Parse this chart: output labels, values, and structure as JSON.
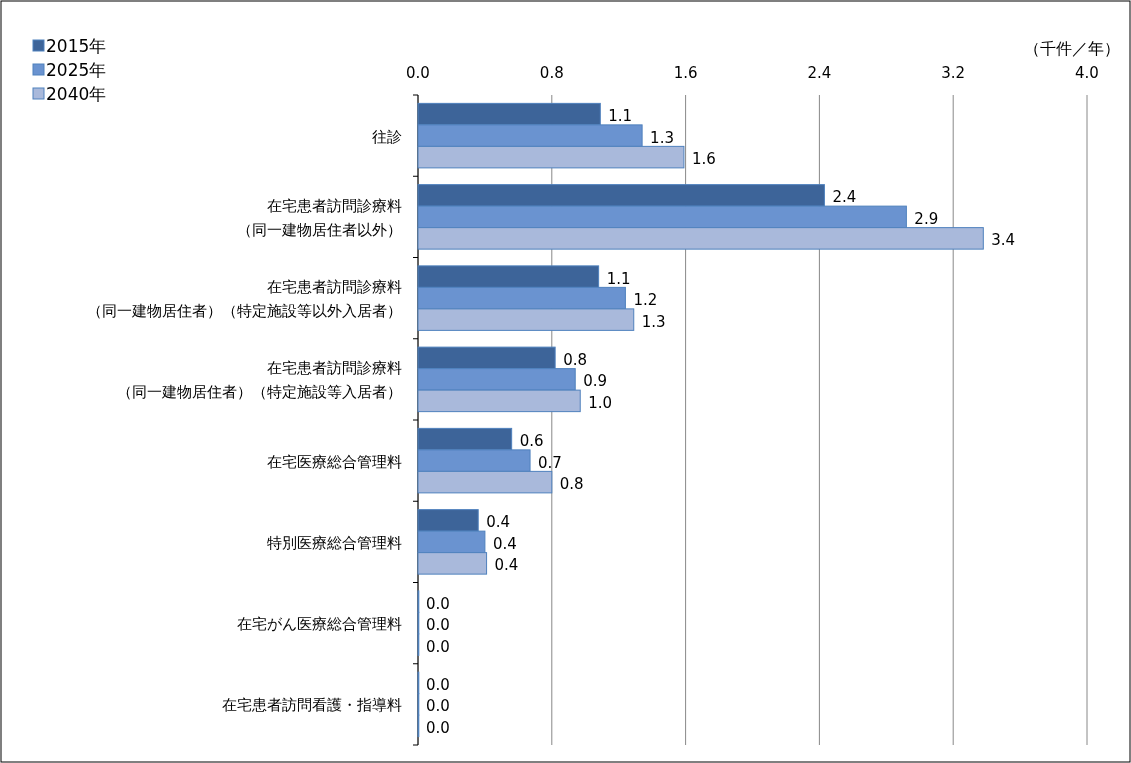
{
  "chart_data": {
    "type": "bar",
    "orientation": "horizontal",
    "categories": [
      "往診",
      "在宅患者訪問診療料（同一建物居住者以外）",
      "在宅患者訪問診療料（同一建物居住者）（特定施設等以外入居者）",
      "在宅患者訪問診療料（同一建物居住者）（特定施設等入居者）",
      "在宅医療総合管理料",
      "特別医療総合管理料",
      "在宅がん医療総合管理料",
      "在宅患者訪問看護・指導料"
    ],
    "series": [
      {
        "name": "2015年",
        "color": "#3d6499",
        "values": [
          1.09,
          2.43,
          1.08,
          0.82,
          0.56,
          0.36,
          0,
          0
        ],
        "value_labels": [
          "1.1",
          "2.4",
          "1.1",
          "0.8",
          "0.6",
          "0.4",
          "0.0",
          "0.0"
        ]
      },
      {
        "name": "2025年",
        "color": "#6a93d0",
        "values": [
          1.34,
          2.92,
          1.24,
          0.94,
          0.67,
          0.4,
          0,
          0
        ],
        "value_labels": [
          "1.3",
          "2.9",
          "1.2",
          "0.9",
          "0.7",
          "0.4",
          "0.0",
          "0.0"
        ]
      },
      {
        "name": "2040年",
        "color": "#a9b9db",
        "values": [
          1.59,
          3.38,
          1.29,
          0.97,
          0.8,
          0.41,
          0,
          0
        ],
        "value_labels": [
          "1.6",
          "3.4",
          "1.3",
          "1.0",
          "0.8",
          "0.4",
          "0.0",
          "0.0"
        ]
      }
    ],
    "xlim": [
      0,
      4
    ],
    "xticks": [
      {
        "value": 0,
        "label": "0.0"
      },
      {
        "value": 0.8,
        "label": "0.8"
      },
      {
        "value": 1.6,
        "label": "1.6"
      },
      {
        "value": 2.4,
        "label": "2.4"
      },
      {
        "value": 3.2,
        "label": "3.2"
      },
      {
        "value": 4,
        "label": "4.0"
      }
    ],
    "grid": "x",
    "legend": "top left",
    "annotations": [
      "（千件／年）"
    ]
  }
}
